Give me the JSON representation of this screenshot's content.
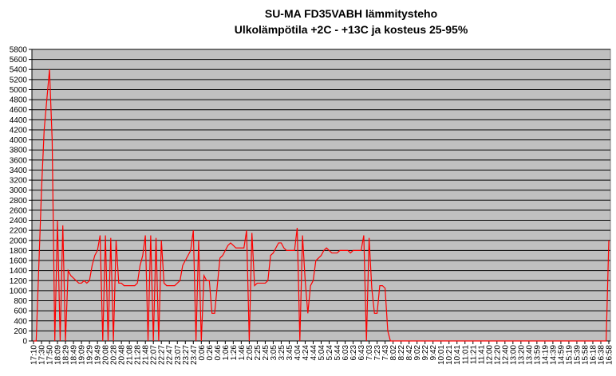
{
  "chart_data": {
    "type": "line",
    "title": "SU-MA FD35VABH lämmitysteho",
    "subtitle": "Ulkolämpötila  +2C - +13C ja kosteus 25-95%",
    "color": "#ff0000",
    "grid": true,
    "ylim": [
      0,
      5800
    ],
    "yticks": [
      0,
      200,
      400,
      600,
      800,
      1000,
      1200,
      1400,
      1600,
      1800,
      2000,
      2200,
      2400,
      2600,
      2800,
      3000,
      3200,
      3400,
      3600,
      3800,
      4000,
      4200,
      4400,
      4600,
      4800,
      5000,
      5200,
      5400,
      5600,
      5800
    ],
    "categories": [
      "17:10",
      null,
      null,
      "17:30",
      null,
      null,
      "17:50",
      null,
      null,
      "18:09",
      null,
      null,
      "18:29",
      null,
      null,
      "18:49",
      null,
      null,
      "19:09",
      null,
      null,
      "19:29",
      null,
      null,
      "19:49",
      null,
      null,
      "20:08",
      null,
      null,
      "20:28",
      null,
      null,
      "20:48",
      null,
      null,
      "21:08",
      null,
      null,
      "21:28",
      null,
      null,
      "21:48",
      null,
      null,
      "22:07",
      null,
      null,
      "22:27",
      null,
      null,
      "22:47",
      null,
      null,
      "23:07",
      null,
      null,
      "23:27",
      null,
      null,
      "23:47",
      null,
      null,
      "0:06",
      null,
      null,
      "0:26",
      null,
      null,
      "0:46",
      null,
      null,
      "1:06",
      null,
      null,
      "1:26",
      null,
      null,
      "1:46",
      null,
      null,
      "2:05",
      null,
      null,
      "2:25",
      null,
      null,
      "2:45",
      null,
      null,
      "3:05",
      null,
      null,
      "3:25",
      null,
      null,
      "3:45",
      null,
      null,
      "4:04",
      null,
      null,
      "4:24",
      null,
      null,
      "4:44",
      null,
      null,
      "5:04",
      null,
      null,
      "5:24",
      null,
      null,
      "5:44",
      null,
      null,
      "6:03",
      null,
      null,
      "6:23",
      null,
      null,
      "6:43",
      null,
      null,
      "7:03",
      null,
      null,
      "7:23",
      null,
      null,
      "7:43",
      null,
      null,
      "8:02",
      null,
      null,
      "8:22",
      null,
      null,
      "8:42",
      null,
      null,
      "9:02",
      null,
      null,
      "9:22",
      null,
      null,
      "9:42",
      null,
      null,
      "10:01",
      null,
      null,
      "10:21",
      null,
      null,
      "10:41",
      null,
      null,
      "11:01",
      null,
      null,
      "11:21",
      null,
      null,
      "11:41",
      null,
      null,
      "12:00",
      null,
      null,
      "12:20",
      null,
      null,
      "12:40",
      null,
      null,
      "13:00",
      null,
      null,
      "13:20",
      null,
      null,
      "13:40",
      null,
      null,
      "13:59",
      null,
      null,
      "14:19",
      null,
      null,
      "14:39",
      null,
      null,
      "14:59",
      null,
      null,
      "15:19",
      null,
      null,
      "15:39",
      null,
      null,
      "15:58",
      null,
      null,
      "16:18",
      null,
      null,
      "16:38",
      null,
      null,
      "16:58"
    ],
    "values": [
      0,
      0,
      1500,
      3000,
      4200,
      4800,
      5400,
      4000,
      0,
      2400,
      0,
      2300,
      0,
      1400,
      1300,
      1250,
      1200,
      1150,
      1150,
      1200,
      1150,
      1200,
      1500,
      1700,
      1800,
      2100,
      0,
      2100,
      0,
      2050,
      0,
      2000,
      1150,
      1150,
      1100,
      1100,
      1100,
      1100,
      1100,
      1150,
      1500,
      1700,
      2100,
      0,
      2100,
      0,
      2050,
      0,
      2000,
      1150,
      1100,
      1100,
      1100,
      1100,
      1150,
      1200,
      1500,
      1600,
      1700,
      1800,
      2200,
      0,
      2000,
      0,
      1300,
      1200,
      1200,
      550,
      550,
      1100,
      1650,
      1700,
      1800,
      1900,
      1950,
      1900,
      1850,
      1850,
      1850,
      1850,
      2200,
      0,
      2150,
      1100,
      1150,
      1150,
      1150,
      1150,
      1200,
      1700,
      1750,
      1850,
      1950,
      1950,
      1850,
      1800,
      1800,
      1800,
      1800,
      2250,
      0,
      2100,
      1200,
      550,
      1100,
      1200,
      1600,
      1650,
      1700,
      1800,
      1850,
      1800,
      1750,
      1750,
      1750,
      1800,
      1800,
      1800,
      1800,
      1750,
      1800,
      1800,
      1800,
      1800,
      2100,
      0,
      2050,
      1050,
      550,
      550,
      1100,
      1100,
      1050,
      200,
      0,
      0,
      0,
      0,
      0,
      0,
      0,
      0,
      0,
      0,
      0,
      0,
      0,
      0,
      0,
      0,
      0,
      0,
      0,
      0,
      0,
      0,
      0,
      0,
      0,
      0,
      0,
      0,
      0,
      0,
      0,
      0,
      0,
      0,
      0,
      0,
      0,
      0,
      0,
      0,
      0,
      0,
      0,
      0,
      0,
      0,
      0,
      0,
      0,
      0,
      0,
      0,
      0,
      0,
      0,
      0,
      0,
      0,
      0,
      0,
      0,
      0,
      0,
      0,
      0,
      0,
      0,
      0,
      0,
      0,
      0,
      0,
      0,
      0,
      0,
      0,
      0,
      0,
      0,
      0,
      0,
      0,
      2000
    ]
  }
}
